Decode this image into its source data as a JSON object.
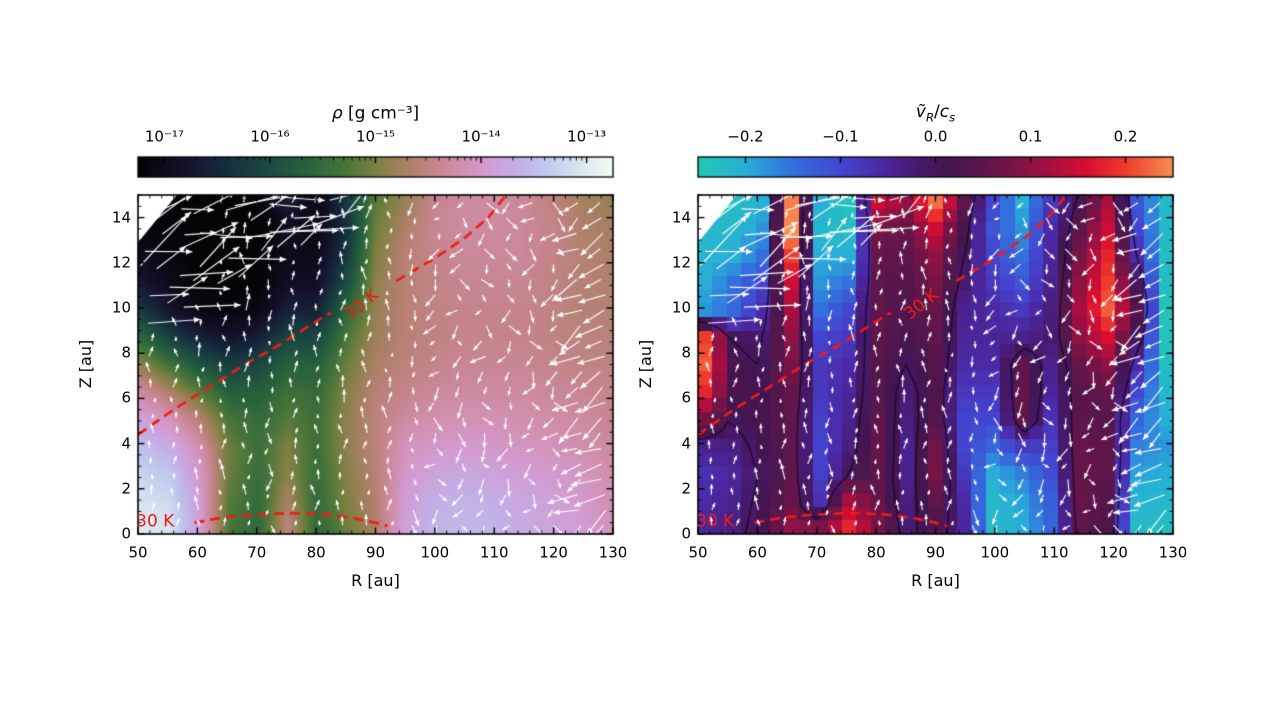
{
  "figure": {
    "background": "#ffffff"
  },
  "chart_data": [
    {
      "id": "density-panel",
      "type": "heatmap",
      "xlabel": "R [au]",
      "ylabel": "Z [au]",
      "xlim": [
        50,
        130
      ],
      "ylim": [
        0,
        15
      ],
      "x_tick_values": [
        50,
        60,
        70,
        80,
        90,
        100,
        110,
        120,
        130
      ],
      "x_tick_labels": [
        "50",
        "60",
        "70",
        "80",
        "90",
        "100",
        "110",
        "120",
        "130"
      ],
      "y_tick_values": [
        0,
        2,
        4,
        6,
        8,
        10,
        12,
        14
      ],
      "y_tick_labels": [
        "0",
        "2",
        "4",
        "6",
        "8",
        "10",
        "12",
        "14"
      ],
      "x_minor_step": 2,
      "y_minor_step": 0.5,
      "render": {
        "smooth": true,
        "zero_contour": false
      },
      "colorbar": {
        "label_parts": {
          "symbol": "ρ",
          "units": " [g cm⁻³]"
        },
        "tick_labels": [
          "10⁻¹⁷",
          "10⁻¹⁶",
          "10⁻¹⁵",
          "10⁻¹⁴",
          "10⁻¹³"
        ],
        "tick_values": [
          -17,
          -16,
          -15,
          -14,
          -13
        ],
        "vmin": -17.25,
        "vmax": -12.75,
        "log_minor": true,
        "stops": [
          [
            0.0,
            "#050507"
          ],
          [
            0.09,
            "#140f28"
          ],
          [
            0.18,
            "#152c3d"
          ],
          [
            0.27,
            "#1b4a41"
          ],
          [
            0.36,
            "#29633b"
          ],
          [
            0.44,
            "#4a7639"
          ],
          [
            0.5,
            "#7d8141"
          ],
          [
            0.56,
            "#a97f62"
          ],
          [
            0.62,
            "#c48489"
          ],
          [
            0.68,
            "#d28fb0"
          ],
          [
            0.74,
            "#d29cd3"
          ],
          [
            0.8,
            "#c2afe6"
          ],
          [
            0.86,
            "#bfc9ee"
          ],
          [
            0.92,
            "#d4e2f0"
          ],
          [
            1.0,
            "#f4fdf2"
          ]
        ]
      },
      "grid": {
        "R_min": 50,
        "R_max": 130,
        "Z_top": 15,
        "Z_bottom": 0,
        "cols": 17,
        "rows": 13,
        "values_log10_rho": [
          [
            null,
            -17.2,
            -17.3,
            -17.3,
            -17.3,
            -16.6,
            -17.1,
            -16.3,
            -15.2,
            -14.85,
            -14.45,
            -14.3,
            -14.3,
            -14.35,
            -14.5,
            -14.75,
            -14.85
          ],
          [
            null,
            -17.2,
            -17.3,
            -17.35,
            -17.35,
            -16.9,
            -17.1,
            -16.4,
            -15.1,
            -14.7,
            -14.4,
            -14.3,
            -14.3,
            -14.35,
            -14.45,
            -14.65,
            -14.75
          ],
          [
            -17.0,
            -17.15,
            -17.3,
            -17.35,
            -17.3,
            -17.0,
            -17.05,
            -16.3,
            -15.0,
            -14.6,
            -14.45,
            -14.35,
            -14.35,
            -14.35,
            -14.45,
            -14.6,
            -14.7
          ],
          [
            -16.75,
            -17.05,
            -17.25,
            -17.3,
            -17.25,
            -16.9,
            -16.9,
            -16.0,
            -14.9,
            -14.6,
            -14.5,
            -14.4,
            -14.4,
            -14.4,
            -14.5,
            -14.6,
            -14.65
          ],
          [
            -16.3,
            -16.8,
            -17.1,
            -17.2,
            -17.1,
            -16.6,
            -16.6,
            -15.6,
            -14.85,
            -14.6,
            -14.5,
            -14.45,
            -14.45,
            -14.45,
            -14.5,
            -14.6,
            -14.6
          ],
          [
            -15.6,
            -16.2,
            -16.6,
            -16.8,
            -16.6,
            -16.1,
            -16.1,
            -15.3,
            -14.8,
            -14.6,
            -14.5,
            -14.45,
            -14.45,
            -14.45,
            -14.5,
            -14.55,
            -14.55
          ],
          [
            -14.9,
            -15.4,
            -15.9,
            -16.2,
            -16.1,
            -15.7,
            -15.7,
            -15.1,
            -14.7,
            -14.55,
            -14.45,
            -14.4,
            -14.4,
            -14.4,
            -14.45,
            -14.5,
            -14.5
          ],
          [
            -14.3,
            -14.7,
            -15.2,
            -15.7,
            -15.7,
            -15.4,
            -15.5,
            -14.95,
            -14.6,
            -14.45,
            -14.35,
            -14.3,
            -14.3,
            -14.3,
            -14.35,
            -14.4,
            -14.45
          ],
          [
            -13.85,
            -14.1,
            -14.6,
            -15.3,
            -15.5,
            -15.2,
            -15.4,
            -14.9,
            -14.55,
            -14.3,
            -14.2,
            -14.15,
            -14.15,
            -14.2,
            -14.25,
            -14.3,
            -14.4
          ],
          [
            -13.5,
            -13.7,
            -14.2,
            -15.1,
            -15.4,
            -15.0,
            -15.4,
            -14.9,
            -14.55,
            -14.1,
            -14.0,
            -13.95,
            -14.0,
            -14.05,
            -14.1,
            -14.2,
            -14.3
          ],
          [
            -13.25,
            -13.4,
            -14.0,
            -15.1,
            -15.45,
            -14.9,
            -15.45,
            -14.95,
            -14.6,
            -14.0,
            -13.8,
            -13.75,
            -13.8,
            -13.9,
            -13.95,
            -14.05,
            -14.2
          ],
          [
            -13.1,
            -13.2,
            -13.9,
            -15.2,
            -15.5,
            -14.7,
            -15.5,
            -15.0,
            -14.65,
            -13.9,
            -13.65,
            -13.6,
            -13.65,
            -13.75,
            -13.85,
            -13.95,
            -14.15
          ],
          [
            -13.0,
            -13.1,
            -13.9,
            -15.3,
            -15.55,
            -14.5,
            -15.55,
            -15.1,
            -14.7,
            -13.85,
            -13.6,
            -13.55,
            -13.6,
            -13.7,
            -13.8,
            -13.9,
            -14.1
          ]
        ]
      },
      "mask_wedge": [
        [
          50,
          12.9
        ],
        [
          56.5,
          15
        ],
        [
          50,
          15
        ]
      ],
      "temperature_contour": {
        "color": "#ee1c16",
        "upper_line": [
          [
            50,
            4.4
          ],
          [
            56,
            5.5
          ],
          [
            62,
            6.5
          ],
          [
            68,
            7.5
          ],
          [
            74,
            8.4
          ],
          [
            80,
            9.4
          ],
          [
            82.5,
            9.8
          ],
          [
            93.5,
            11.2
          ],
          [
            100,
            12.2
          ],
          [
            105,
            13.1
          ],
          [
            109,
            14.0
          ],
          [
            112,
            15.0
          ]
        ],
        "upper_gap": [
          83,
          93.5
        ],
        "lower_arc": [
          [
            59.5,
            0.5
          ],
          [
            64,
            0.72
          ],
          [
            69,
            0.85
          ],
          [
            75,
            0.92
          ],
          [
            81,
            0.88
          ],
          [
            86,
            0.72
          ],
          [
            90,
            0.5
          ],
          [
            92,
            0.35
          ]
        ],
        "labels": [
          {
            "text": "30 K",
            "R": 87.8,
            "Z": 10.15,
            "angle_deg": -38
          },
          {
            "text": "30 K",
            "R": 52.9,
            "Z": 0.55,
            "angle_deg": 0
          }
        ]
      },
      "quiver": {
        "color": "#ffffff",
        "seed": 11,
        "lane_start_R": 52.3,
        "lane_step_R": 4.0,
        "z_start": 0.38,
        "z_step": 0.68,
        "surface_line": {
          "R0": 50,
          "Z0": 9.0,
          "slope": 0.134
        },
        "wind": {
          "R_range": [
            50.5,
            94
          ],
          "R_step": 3.4,
          "z_step": 1.05,
          "len_range": [
            26,
            74
          ],
          "angle_range_deg": [
            -8,
            54
          ]
        },
        "disk_len_range": [
          3.5,
          12
        ],
        "outer": {
          "R_min": 96.5,
          "angle_range_deg": [
            195,
            330
          ],
          "len_range": [
            5,
            16
          ]
        },
        "edge": {
          "R_min": 123.5,
          "angle_range_deg": [
            183,
            237
          ],
          "len_range": [
            15,
            33
          ]
        }
      }
    },
    {
      "id": "radial-velocity-panel",
      "type": "heatmap",
      "xlabel": "R [au]",
      "ylabel": "Z [au]",
      "xlim": [
        50,
        130
      ],
      "ylim": [
        0,
        15
      ],
      "x_tick_values": [
        50,
        60,
        70,
        80,
        90,
        100,
        110,
        120,
        130
      ],
      "x_tick_labels": [
        "50",
        "60",
        "70",
        "80",
        "90",
        "100",
        "110",
        "120",
        "130"
      ],
      "y_tick_values": [
        0,
        2,
        4,
        6,
        8,
        10,
        12,
        14
      ],
      "y_tick_labels": [
        "0",
        "2",
        "4",
        "6",
        "8",
        "10",
        "12",
        "14"
      ],
      "x_minor_step": 2,
      "y_minor_step": 0.5,
      "render": {
        "smooth": false,
        "zero_contour": true
      },
      "colorbar": {
        "label_parts": {
          "v": "ṽ",
          "v_sub": "R",
          "slash": "/",
          "c": "c",
          "c_sub": "s"
        },
        "tick_labels": [
          "−0.2",
          "−0.1",
          "0.0",
          "0.1",
          "0.2"
        ],
        "tick_values": [
          -0.2,
          -0.1,
          0.0,
          0.1,
          0.2
        ],
        "vmin": -0.25,
        "vmax": 0.25,
        "log_minor": false,
        "stops": [
          [
            0.0,
            "#22c8b3"
          ],
          [
            0.1,
            "#28aed8"
          ],
          [
            0.2,
            "#336fdd"
          ],
          [
            0.3,
            "#4345d0"
          ],
          [
            0.38,
            "#4b2aa8"
          ],
          [
            0.46,
            "#471a71"
          ],
          [
            0.52,
            "#431551"
          ],
          [
            0.58,
            "#55164c"
          ],
          [
            0.66,
            "#771446"
          ],
          [
            0.74,
            "#a60f40"
          ],
          [
            0.82,
            "#d90e31"
          ],
          [
            0.9,
            "#ee3b2c"
          ],
          [
            1.0,
            "#f88d51"
          ]
        ]
      },
      "grid": {
        "R_min": 50,
        "R_max": 130,
        "Z_top": 15,
        "Z_bottom": 0,
        "cols": 17,
        "rows": 13,
        "values_vr_over_cs": [
          [
            -0.22,
            -0.23,
            -0.2,
            0.24,
            -0.2,
            -0.24,
            0.15,
            0.1,
            0.23,
            0.05,
            -0.1,
            -0.2,
            -0.08,
            0.02,
            0.12,
            -0.12,
            -0.22
          ],
          [
            -0.22,
            -0.22,
            -0.18,
            0.25,
            -0.22,
            -0.23,
            0.08,
            0.06,
            0.15,
            0.02,
            -0.12,
            -0.18,
            -0.06,
            0.05,
            0.15,
            -0.1,
            -0.22
          ],
          [
            -0.21,
            -0.2,
            -0.15,
            0.2,
            -0.2,
            -0.2,
            0.06,
            0.05,
            0.1,
            0.0,
            -0.1,
            -0.15,
            -0.05,
            0.08,
            0.18,
            -0.06,
            -0.23
          ],
          [
            -0.2,
            -0.15,
            -0.1,
            0.15,
            -0.18,
            -0.15,
            0.05,
            0.04,
            0.08,
            -0.02,
            -0.08,
            -0.12,
            -0.04,
            0.1,
            0.2,
            0.0,
            -0.23
          ],
          [
            -0.18,
            -0.14,
            -0.06,
            0.12,
            -0.15,
            -0.1,
            0.05,
            0.03,
            0.06,
            -0.04,
            -0.06,
            -0.08,
            -0.03,
            0.12,
            0.22,
            0.04,
            -0.24
          ],
          [
            0.2,
            0.0,
            -0.02,
            0.1,
            -0.1,
            -0.08,
            0.05,
            0.02,
            0.05,
            -0.05,
            -0.05,
            -0.04,
            -0.02,
            0.1,
            0.16,
            0.0,
            -0.24
          ],
          [
            0.22,
            0.02,
            0.0,
            0.08,
            -0.08,
            -0.06,
            0.04,
            0.0,
            0.04,
            -0.06,
            -0.06,
            0.05,
            -0.04,
            0.06,
            0.1,
            -0.06,
            -0.23
          ],
          [
            0.18,
            0.02,
            0.01,
            0.06,
            -0.08,
            -0.05,
            0.04,
            -0.02,
            0.03,
            -0.08,
            -0.08,
            0.06,
            -0.05,
            0.04,
            0.06,
            -0.1,
            -0.22
          ],
          [
            0.08,
            0.0,
            0.02,
            0.05,
            -0.09,
            -0.04,
            0.05,
            -0.03,
            0.04,
            -0.1,
            -0.1,
            0.05,
            -0.07,
            0.05,
            0.04,
            -0.14,
            -0.2
          ],
          [
            -0.04,
            -0.03,
            0.01,
            0.05,
            -0.1,
            -0.03,
            0.06,
            -0.04,
            0.07,
            -0.1,
            -0.14,
            -0.08,
            -0.09,
            0.06,
            0.05,
            -0.16,
            -0.18
          ],
          [
            -0.07,
            -0.05,
            0.0,
            0.05,
            -0.09,
            0.0,
            0.05,
            -0.04,
            0.08,
            -0.08,
            -0.2,
            -0.16,
            -0.11,
            0.06,
            0.05,
            -0.19,
            -0.2
          ],
          [
            -0.06,
            -0.04,
            0.01,
            0.06,
            -0.07,
            0.12,
            0.06,
            -0.03,
            0.05,
            -0.06,
            -0.22,
            -0.19,
            -0.13,
            0.06,
            0.04,
            -0.21,
            -0.22
          ],
          [
            -0.05,
            -0.03,
            0.02,
            0.1,
            0.08,
            0.18,
            0.08,
            -0.02,
            0.03,
            -0.05,
            -0.22,
            -0.2,
            -0.14,
            0.05,
            0.03,
            -0.22,
            -0.23
          ]
        ]
      },
      "mask_wedge": [
        [
          50,
          12.9
        ],
        [
          56.5,
          15
        ],
        [
          50,
          15
        ]
      ],
      "zero_contour_color": "#200a33",
      "temperature_contour": {
        "color": "#ee1c16",
        "upper_line": [
          [
            50,
            4.4
          ],
          [
            56,
            5.5
          ],
          [
            62,
            6.5
          ],
          [
            68,
            7.5
          ],
          [
            74,
            8.4
          ],
          [
            80,
            9.4
          ],
          [
            82.5,
            9.8
          ],
          [
            93.5,
            11.2
          ],
          [
            100,
            12.2
          ],
          [
            105,
            13.1
          ],
          [
            109,
            14.0
          ],
          [
            112,
            15.0
          ]
        ],
        "upper_gap": [
          83,
          93.5
        ],
        "lower_arc": [
          [
            59.5,
            0.5
          ],
          [
            64,
            0.72
          ],
          [
            69,
            0.85
          ],
          [
            75,
            0.92
          ],
          [
            81,
            0.88
          ],
          [
            86,
            0.72
          ],
          [
            90,
            0.5
          ],
          [
            92,
            0.35
          ]
        ],
        "labels": [
          {
            "text": "30 K",
            "R": 87.8,
            "Z": 10.15,
            "angle_deg": -38
          },
          {
            "text": "30 K",
            "R": 52.9,
            "Z": 0.55,
            "angle_deg": 0
          }
        ]
      },
      "quiver": {
        "color": "#ffffff",
        "seed": 11,
        "lane_start_R": 52.3,
        "lane_step_R": 4.0,
        "z_start": 0.38,
        "z_step": 0.68,
        "surface_line": {
          "R0": 50,
          "Z0": 9.0,
          "slope": 0.134
        },
        "wind": {
          "R_range": [
            50.5,
            94
          ],
          "R_step": 3.4,
          "z_step": 1.05,
          "len_range": [
            26,
            74
          ],
          "angle_range_deg": [
            -8,
            54
          ]
        },
        "disk_len_range": [
          3.5,
          12
        ],
        "outer": {
          "R_min": 96.5,
          "angle_range_deg": [
            195,
            330
          ],
          "len_range": [
            5,
            16
          ]
        },
        "edge": {
          "R_min": 123.5,
          "angle_range_deg": [
            183,
            237
          ],
          "len_range": [
            15,
            33
          ]
        }
      }
    }
  ]
}
